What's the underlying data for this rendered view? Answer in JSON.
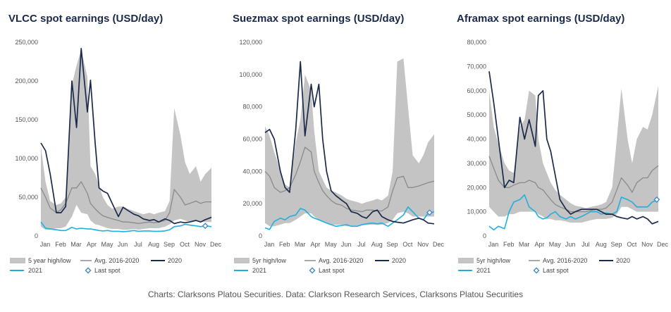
{
  "caption": "Charts: Clarksons Platou Securities. Data: Clarkson Research Services, Clarksons Platou Securities",
  "colors": {
    "band": "#c4c4c4",
    "avg": "#8a8a8a",
    "y2020": "#1b2a4a",
    "y2021": "#1fb0e0",
    "last_spot": "#3a86c8"
  },
  "chart_data": [
    {
      "type": "area",
      "title": "VLCC spot earnings (USD/day)",
      "x_labels": [
        "Jan",
        "Feb",
        "Mar",
        "Apr",
        "May",
        "Jun",
        "Jul",
        "Aug",
        "Sep",
        "Oct",
        "Nov",
        "Dec"
      ],
      "ylim": [
        0,
        250000
      ],
      "yticks": [
        0,
        50000,
        100000,
        150000,
        200000,
        250000
      ],
      "ytick_labels": [
        "0",
        "50,000",
        "100,000",
        "150,000",
        "200,000",
        "250,000"
      ],
      "legend": [
        "5 year high/low",
        "Avg. 2016-2020",
        "2020",
        "2021",
        "Last spot"
      ],
      "x": [
        0,
        0.3,
        0.6,
        1,
        1.3,
        1.6,
        2,
        2.3,
        2.6,
        3,
        3.2,
        3.5,
        3.75,
        4,
        4.3,
        4.6,
        5,
        5.3,
        5.6,
        6,
        6.3,
        6.6,
        7,
        7.3,
        7.6,
        8,
        8.3,
        8.6,
        9,
        9.3,
        9.6,
        10,
        10.3,
        10.6,
        11
      ],
      "high": [
        115000,
        70000,
        45000,
        40000,
        42000,
        50000,
        195000,
        220000,
        240000,
        205000,
        90000,
        80000,
        65000,
        50000,
        40000,
        35000,
        38000,
        38000,
        35000,
        32000,
        30000,
        28000,
        30000,
        28000,
        30000,
        32000,
        45000,
        165000,
        130000,
        95000,
        80000,
        90000,
        70000,
        80000,
        88000
      ],
      "low": [
        12000,
        8000,
        8000,
        10000,
        10000,
        12000,
        25000,
        40000,
        30000,
        28000,
        20000,
        15000,
        14000,
        12000,
        10000,
        9000,
        9000,
        8000,
        8000,
        9000,
        8000,
        9000,
        10000,
        10000,
        10000,
        12000,
        15000,
        20000,
        22000,
        20000,
        18000,
        20000,
        18000,
        18000,
        18000
      ],
      "avg": [
        62000,
        50000,
        36000,
        30000,
        34000,
        42000,
        62000,
        62000,
        70000,
        55000,
        42000,
        35000,
        30000,
        26000,
        24000,
        22000,
        20000,
        18000,
        18000,
        17000,
        16000,
        17000,
        18000,
        17000,
        18000,
        20000,
        30000,
        60000,
        50000,
        40000,
        42000,
        45000,
        42000,
        44000,
        44000
      ],
      "y2020": [
        120000,
        110000,
        80000,
        30000,
        30000,
        38000,
        200000,
        140000,
        242000,
        160000,
        201000,
        120000,
        62000,
        58000,
        55000,
        42000,
        25000,
        37000,
        33000,
        28000,
        26000,
        22000,
        20000,
        21000,
        18000,
        22000,
        20000,
        16000,
        18000,
        17000,
        18000,
        20000,
        18000,
        21000,
        24000
      ],
      "y2021": [
        18000,
        10000,
        9000,
        8000,
        7000,
        7000,
        11000,
        9000,
        10000,
        9000,
        9000,
        8000,
        7000,
        6500,
        7000,
        6000,
        6000,
        5500,
        6000,
        7000,
        6000,
        6500,
        6500,
        6000,
        6000,
        6500,
        8000,
        12000,
        13000,
        15000,
        14000,
        13000,
        12000,
        13000,
        12000
      ],
      "last_spot": [
        10.6,
        13000
      ]
    },
    {
      "type": "area",
      "title": "Suezmax spot earnings (USD/day)",
      "x_labels": [
        "Jan",
        "Feb",
        "Mar",
        "Apr",
        "May",
        "Jun",
        "Jul",
        "Aug",
        "Sep",
        "Oct",
        "Nov",
        "Dec"
      ],
      "ylim": [
        0,
        120000
      ],
      "yticks": [
        0,
        20000,
        40000,
        60000,
        80000,
        100000,
        120000
      ],
      "ytick_labels": [
        "0",
        "20,000",
        "40,000",
        "60,000",
        "80,000",
        "100,000",
        "120,000"
      ],
      "legend": [
        "5yr high/low",
        "Avg. 2016-2020",
        "2020",
        "2021",
        "Last spot"
      ],
      "x": [
        0,
        0.3,
        0.6,
        1,
        1.3,
        1.6,
        2,
        2.3,
        2.6,
        3,
        3.2,
        3.5,
        3.75,
        4,
        4.3,
        4.6,
        5,
        5.3,
        5.6,
        6,
        6.3,
        6.6,
        7,
        7.3,
        7.6,
        8,
        8.3,
        8.6,
        9,
        9.3,
        9.6,
        10,
        10.3,
        10.6,
        11
      ],
      "high": [
        68000,
        62000,
        52000,
        40000,
        32000,
        30000,
        58000,
        72000,
        100000,
        90000,
        65000,
        40000,
        35000,
        30000,
        28000,
        27000,
        25000,
        23000,
        22000,
        21000,
        20000,
        21000,
        22000,
        23000,
        22000,
        25000,
        40000,
        108000,
        110000,
        80000,
        50000,
        45000,
        50000,
        58000,
        63000
      ],
      "low": [
        8000,
        6000,
        6000,
        7000,
        8000,
        8000,
        10000,
        12000,
        14000,
        14000,
        12000,
        10000,
        9000,
        8000,
        7000,
        7000,
        7000,
        6000,
        6000,
        6000,
        6500,
        7000,
        7000,
        7000,
        7000,
        8000,
        10000,
        14000,
        15000,
        14000,
        12000,
        12000,
        12000,
        12000,
        12000
      ],
      "avg": [
        40000,
        37000,
        30000,
        27000,
        28000,
        30000,
        38000,
        46000,
        55000,
        52000,
        40000,
        33000,
        28000,
        25000,
        22000,
        20000,
        19000,
        17000,
        16000,
        15500,
        15000,
        16000,
        16000,
        15500,
        15500,
        18000,
        28000,
        36000,
        37000,
        30000,
        30000,
        31000,
        32000,
        33000,
        34000
      ],
      "y2020": [
        64000,
        66000,
        60000,
        40000,
        30000,
        27000,
        66000,
        108000,
        62000,
        94000,
        80000,
        94000,
        60000,
        40000,
        28000,
        25000,
        22000,
        20000,
        15000,
        14000,
        12000,
        11000,
        15000,
        16000,
        12000,
        10000,
        9000,
        8500,
        8000,
        9000,
        10000,
        11000,
        10000,
        8000,
        7500
      ],
      "y2021": [
        5000,
        4000,
        9000,
        11000,
        10000,
        12000,
        13000,
        17000,
        16000,
        12000,
        11000,
        10000,
        9000,
        8000,
        7000,
        6000,
        6500,
        7000,
        6000,
        6000,
        7000,
        7500,
        8000,
        7500,
        8000,
        6000,
        8000,
        10000,
        13000,
        18000,
        15000,
        11000,
        10000,
        14000,
        15000
      ],
      "last_spot": [
        10.7,
        14500
      ]
    },
    {
      "type": "area",
      "title": "Aframax spot earnings (USD/day)",
      "x_labels": [
        "Jan",
        "Feb",
        "Mar",
        "Apr",
        "May",
        "Jun",
        "Jul",
        "Aug",
        "Sep",
        "Oct",
        "Nov",
        "Dec"
      ],
      "ylim": [
        0,
        80000
      ],
      "yticks": [
        0,
        10000,
        20000,
        30000,
        40000,
        50000,
        60000,
        70000,
        80000
      ],
      "ytick_labels": [
        "0",
        "10,000",
        "20,000",
        "30,000",
        "40,000",
        "50,000",
        "60,000",
        "70,000",
        "80,000"
      ],
      "legend": [
        "5yr high/low",
        "Avg. 2016-2020",
        "2020",
        "2021",
        "Last spot"
      ],
      "x": [
        0,
        0.3,
        0.6,
        1,
        1.3,
        1.6,
        2,
        2.3,
        2.6,
        3,
        3.2,
        3.5,
        3.75,
        4,
        4.3,
        4.6,
        5,
        5.3,
        5.6,
        6,
        6.3,
        6.6,
        7,
        7.3,
        7.6,
        8,
        8.3,
        8.6,
        9,
        9.3,
        9.6,
        10,
        10.3,
        10.6,
        11
      ],
      "high": [
        60000,
        45000,
        38000,
        30000,
        27000,
        26000,
        45000,
        48000,
        60000,
        58000,
        40000,
        30000,
        26000,
        22000,
        19000,
        17000,
        15000,
        13500,
        12500,
        12000,
        11500,
        12000,
        12500,
        13000,
        14000,
        20000,
        40000,
        61000,
        40000,
        30000,
        40000,
        45000,
        44000,
        50000,
        62000
      ],
      "low": [
        12000,
        10000,
        8000,
        8000,
        9000,
        9000,
        10000,
        10000,
        10000,
        10000,
        9000,
        8000,
        7000,
        7000,
        6500,
        6500,
        6000,
        5500,
        5500,
        5500,
        6000,
        6500,
        7000,
        7000,
        7000,
        7500,
        9000,
        12000,
        12000,
        11000,
        10000,
        10000,
        10000,
        10000,
        10000
      ],
      "avg": [
        33000,
        28000,
        23000,
        20000,
        20000,
        21000,
        22000,
        22000,
        23000,
        22000,
        20000,
        19000,
        17000,
        15000,
        13000,
        12000,
        11000,
        10000,
        10000,
        10000,
        10000,
        10500,
        11000,
        11000,
        11500,
        14000,
        19000,
        24000,
        21000,
        18000,
        22000,
        24000,
        24000,
        27000,
        29000
      ],
      "y2020": [
        68000,
        55000,
        40000,
        20000,
        23000,
        22000,
        49000,
        40000,
        48000,
        37000,
        58000,
        60000,
        40000,
        35000,
        25000,
        15000,
        11000,
        9000,
        10000,
        11000,
        11000,
        11000,
        11000,
        10000,
        9000,
        9000,
        8000,
        7500,
        7000,
        8000,
        7000,
        8000,
        7000,
        5000,
        6000
      ],
      "y2021": [
        4000,
        2500,
        4000,
        3000,
        10000,
        14000,
        15000,
        17000,
        12000,
        10000,
        8000,
        7000,
        7500,
        9000,
        10000,
        8000,
        7000,
        8000,
        7000,
        8000,
        9000,
        10000,
        10000,
        9000,
        9500,
        9000,
        10000,
        16000,
        15000,
        14000,
        12000,
        12000,
        12000,
        14000,
        15000
      ],
      "last_spot": [
        10.9,
        15000
      ]
    }
  ]
}
